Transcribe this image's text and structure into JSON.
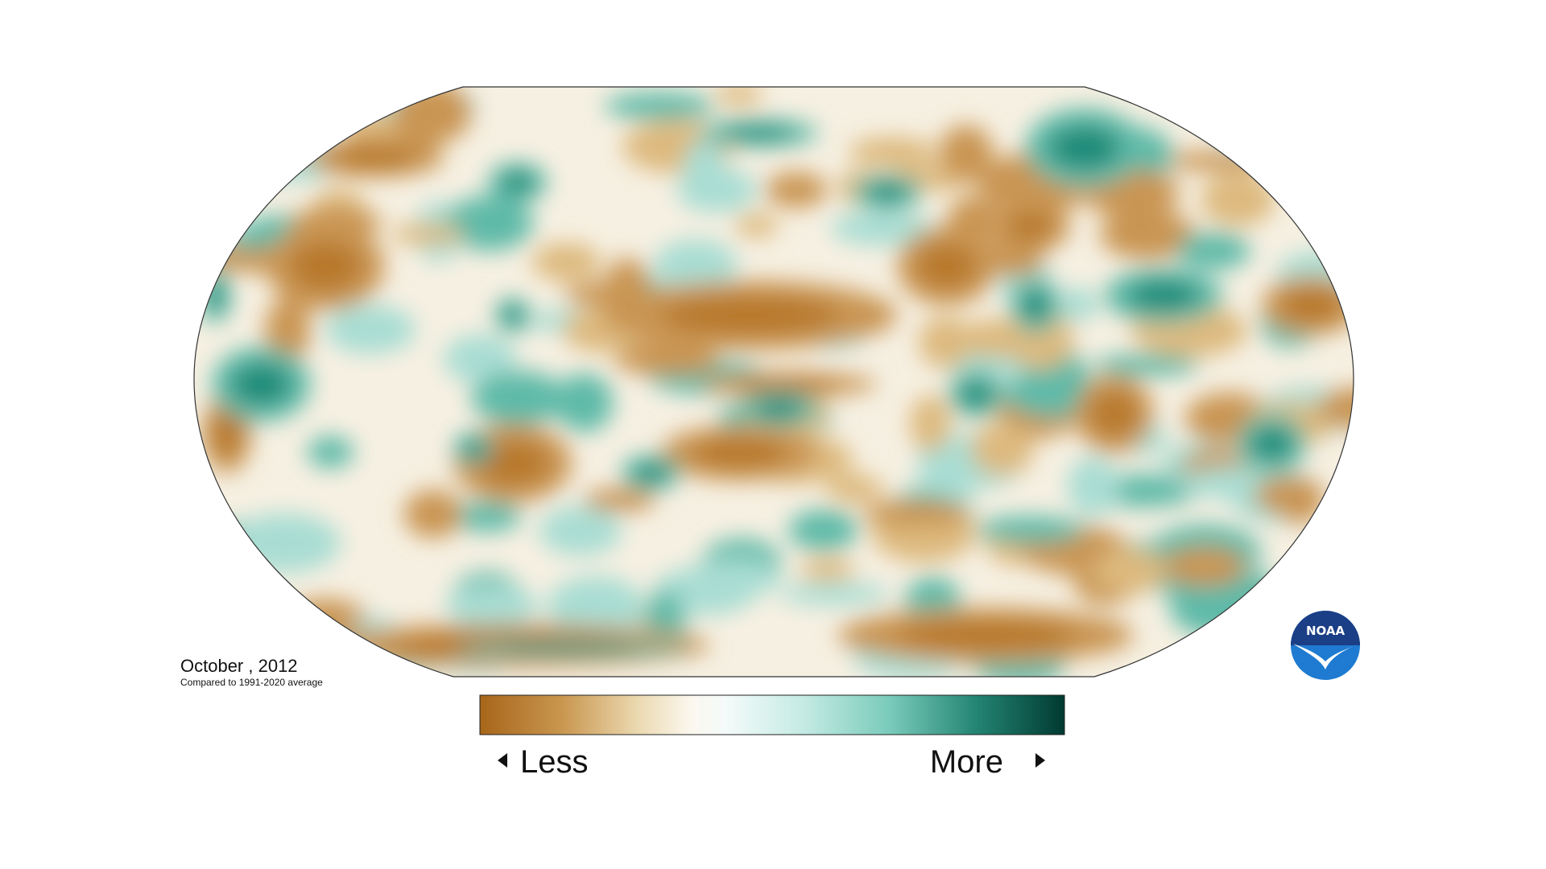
{
  "map": {
    "date": "October , 2012",
    "caption": "Compared to 1991-2020 average",
    "legend": {
      "low": "Less",
      "high": "More"
    },
    "logo": "NOAA"
  }
}
